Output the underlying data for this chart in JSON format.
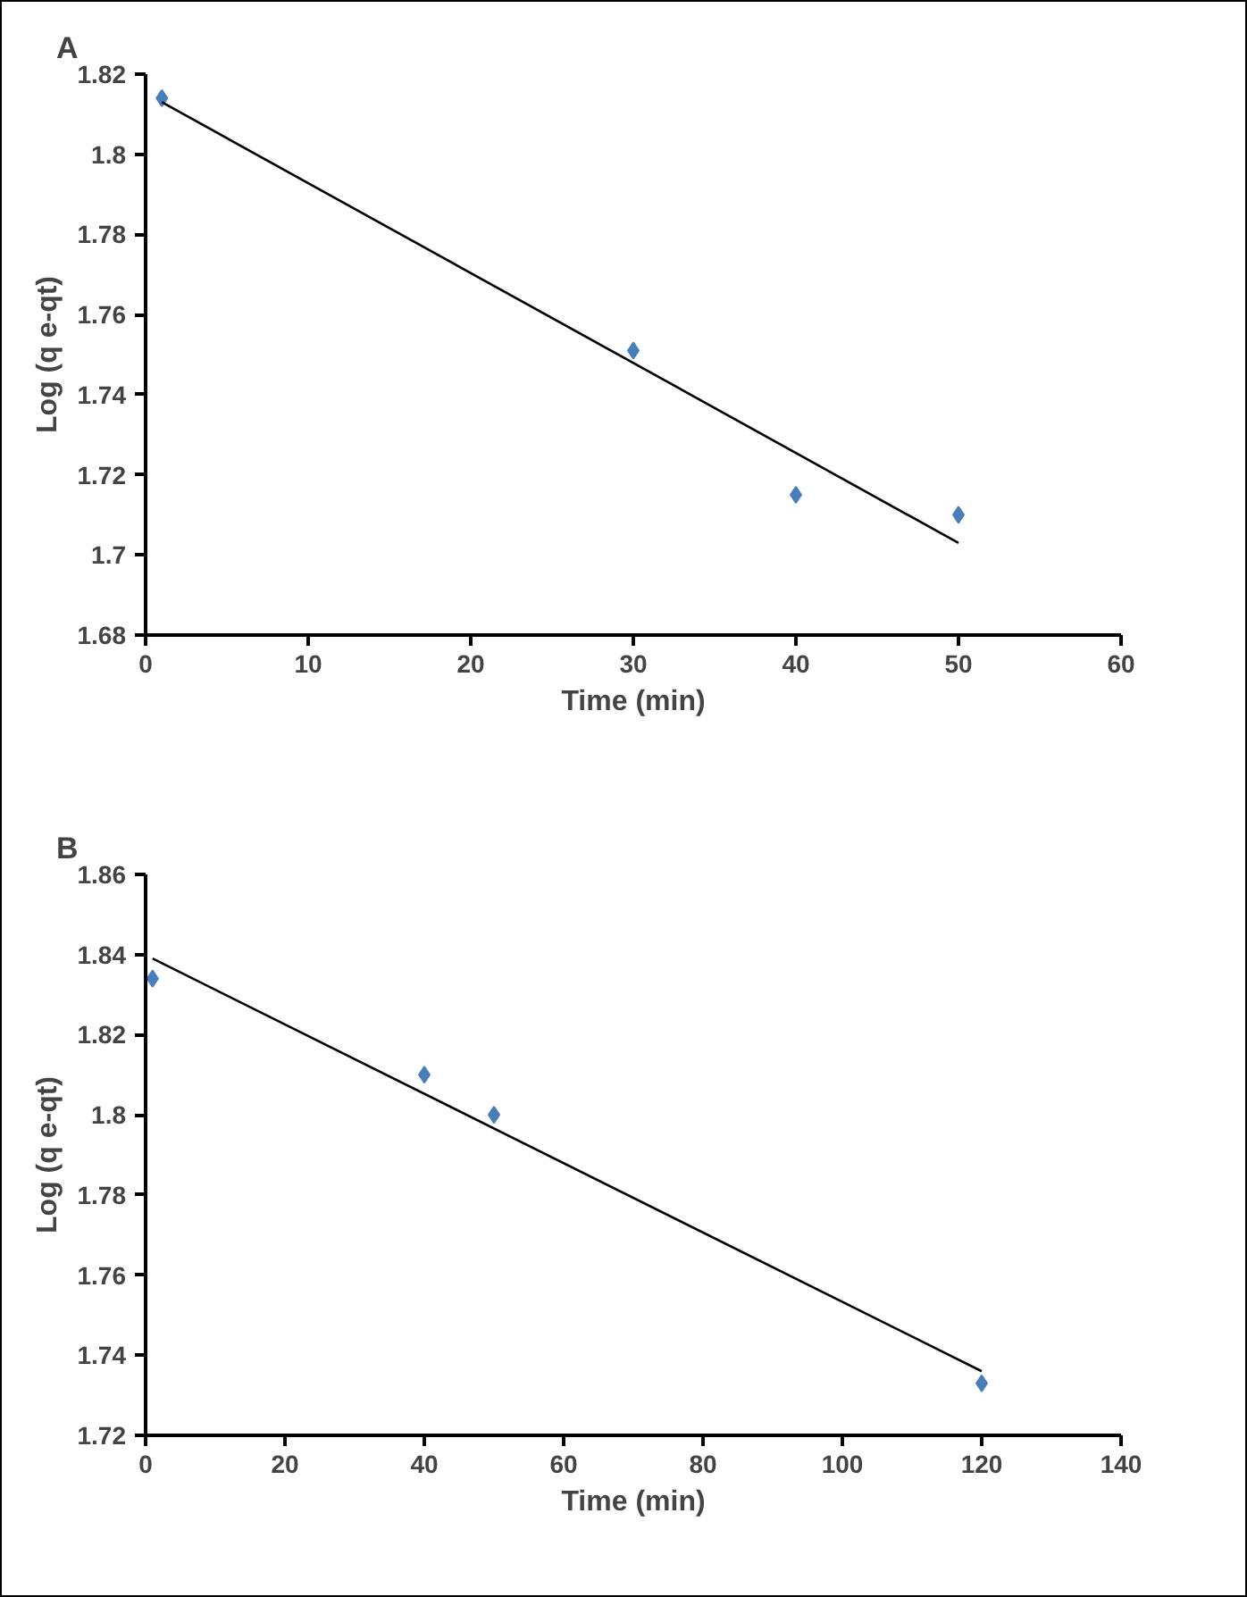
{
  "chart_data": [
    {
      "type": "scatter",
      "title": "A",
      "xlabel": "Time (min)",
      "ylabel": "Log (q e-qt)",
      "xlim": [
        0,
        60
      ],
      "ylim": [
        1.68,
        1.82
      ],
      "xticks": [
        0,
        10,
        20,
        30,
        40,
        50,
        60
      ],
      "yticks": [
        1.68,
        1.7,
        1.72,
        1.74,
        1.76,
        1.78,
        1.8,
        1.82
      ],
      "grid": false,
      "marker": "diamond",
      "series": [
        {
          "color": "#4a7ebb",
          "x": [
            1,
            30,
            40,
            50
          ],
          "values": [
            1.814,
            1.751,
            1.715,
            1.71
          ]
        },
        {
          "type": "line",
          "color": "#000000",
          "marker": "none",
          "line_style": "solid",
          "x": [
            1,
            50
          ],
          "values": [
            1.813,
            1.703
          ]
        }
      ]
    },
    {
      "type": "scatter",
      "title": "B",
      "xlabel": "Time (min)",
      "ylabel": "Log (q e-qt)",
      "xlim": [
        0,
        140
      ],
      "ylim": [
        1.72,
        1.86
      ],
      "xticks": [
        0,
        20,
        40,
        60,
        80,
        100,
        120,
        140
      ],
      "yticks": [
        1.72,
        1.74,
        1.76,
        1.78,
        1.8,
        1.82,
        1.84,
        1.86
      ],
      "grid": false,
      "marker": "diamond",
      "series": [
        {
          "color": "#4a7ebb",
          "x": [
            1,
            40,
            50,
            120
          ],
          "values": [
            1.834,
            1.81,
            1.8,
            1.733
          ]
        },
        {
          "type": "line",
          "color": "#000000",
          "marker": "none",
          "line_style": "solid",
          "x": [
            1,
            120
          ],
          "values": [
            1.839,
            1.736
          ]
        }
      ]
    }
  ]
}
